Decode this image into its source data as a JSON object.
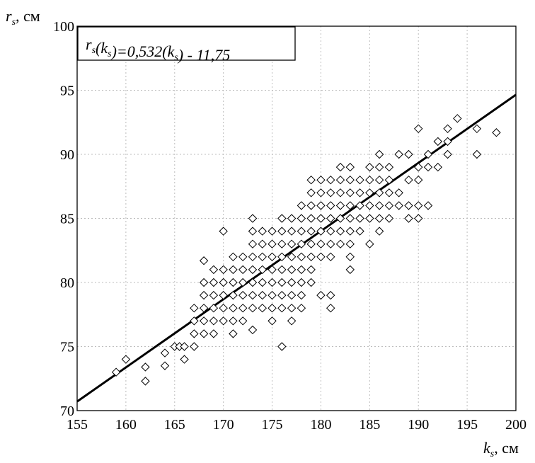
{
  "chart_data": {
    "type": "scatter",
    "title": "",
    "ylabel": {
      "main": "r",
      "sub": "s",
      "unit": ", см"
    },
    "xlabel": {
      "main": "k",
      "sub": "s",
      "unit": ", см"
    },
    "xlim": [
      155,
      200
    ],
    "ylim": [
      70,
      100
    ],
    "xticks": [
      "155",
      "160",
      "165",
      "170",
      "175",
      "180",
      "185",
      "190",
      "195",
      "200"
    ],
    "yticks": [
      "70",
      "75",
      "80",
      "85",
      "90",
      "95",
      "100"
    ],
    "grid": true,
    "annotation": {
      "parts": [
        {
          "t": "r",
          "sub": false
        },
        {
          "t": "s",
          "sub": true
        },
        {
          "t": "(",
          "sub": false
        },
        {
          "t": "k",
          "sub": false
        },
        {
          "t": "s",
          "sub": true
        },
        {
          "t": ")=0,532(",
          "sub": false
        },
        {
          "t": "k",
          "sub": false
        },
        {
          "t": "s",
          "sub": true
        },
        {
          "t": ") - 11,75",
          "sub": false
        }
      ]
    },
    "fit_line": {
      "slope": 0.532,
      "intercept": -11.75
    },
    "points": [
      [
        159,
        73
      ],
      [
        160,
        74
      ],
      [
        162,
        73.4
      ],
      [
        162,
        72.3
      ],
      [
        164,
        73.5
      ],
      [
        164,
        74.5
      ],
      [
        165,
        75
      ],
      [
        165.5,
        75
      ],
      [
        166,
        74
      ],
      [
        166,
        75
      ],
      [
        167,
        75
      ],
      [
        167,
        76
      ],
      [
        167,
        77
      ],
      [
        167,
        78
      ],
      [
        168,
        81.7
      ],
      [
        168,
        80
      ],
      [
        168,
        79
      ],
      [
        168,
        78
      ],
      [
        168,
        77
      ],
      [
        168,
        76
      ],
      [
        169,
        81
      ],
      [
        169,
        80
      ],
      [
        169,
        79
      ],
      [
        169,
        78
      ],
      [
        169,
        77
      ],
      [
        169,
        76
      ],
      [
        170,
        84
      ],
      [
        170,
        81
      ],
      [
        170,
        80
      ],
      [
        170,
        79
      ],
      [
        170,
        78
      ],
      [
        170,
        77
      ],
      [
        171,
        82
      ],
      [
        171,
        81
      ],
      [
        171,
        80
      ],
      [
        171,
        79
      ],
      [
        171,
        78
      ],
      [
        171,
        77
      ],
      [
        171,
        76
      ],
      [
        172,
        82
      ],
      [
        172,
        81
      ],
      [
        172,
        80
      ],
      [
        172,
        79
      ],
      [
        172,
        78
      ],
      [
        172,
        77
      ],
      [
        173,
        85
      ],
      [
        173,
        84
      ],
      [
        173,
        83
      ],
      [
        173,
        82
      ],
      [
        173,
        81
      ],
      [
        173,
        80
      ],
      [
        173,
        79
      ],
      [
        173,
        78
      ],
      [
        173,
        76.3
      ],
      [
        174,
        84
      ],
      [
        174,
        83
      ],
      [
        174,
        82
      ],
      [
        174,
        81
      ],
      [
        174,
        80
      ],
      [
        174,
        79
      ],
      [
        174,
        78
      ],
      [
        175,
        84
      ],
      [
        175,
        83
      ],
      [
        175,
        82
      ],
      [
        175,
        81
      ],
      [
        175,
        80
      ],
      [
        175,
        79
      ],
      [
        175,
        78
      ],
      [
        175,
        77
      ],
      [
        176,
        85
      ],
      [
        176,
        84
      ],
      [
        176,
        83
      ],
      [
        176,
        82
      ],
      [
        176,
        81
      ],
      [
        176,
        80
      ],
      [
        176,
        79
      ],
      [
        176,
        78
      ],
      [
        176,
        75
      ],
      [
        177,
        85
      ],
      [
        177,
        84
      ],
      [
        177,
        83
      ],
      [
        177,
        82
      ],
      [
        177,
        81
      ],
      [
        177,
        80
      ],
      [
        177,
        79
      ],
      [
        177,
        78
      ],
      [
        177,
        77
      ],
      [
        178,
        86
      ],
      [
        178,
        85
      ],
      [
        178,
        84
      ],
      [
        178,
        83
      ],
      [
        178,
        82
      ],
      [
        178,
        81
      ],
      [
        178,
        80
      ],
      [
        178,
        79
      ],
      [
        178,
        78
      ],
      [
        179,
        88
      ],
      [
        179,
        87
      ],
      [
        179,
        86
      ],
      [
        179,
        85
      ],
      [
        179,
        84
      ],
      [
        179,
        83
      ],
      [
        179,
        82
      ],
      [
        179,
        81
      ],
      [
        179,
        80
      ],
      [
        180,
        88
      ],
      [
        180,
        87
      ],
      [
        180,
        86
      ],
      [
        180,
        85
      ],
      [
        180,
        84
      ],
      [
        180,
        83
      ],
      [
        180,
        82
      ],
      [
        180,
        79
      ],
      [
        181,
        88
      ],
      [
        181,
        87
      ],
      [
        181,
        86
      ],
      [
        181,
        85
      ],
      [
        181,
        84
      ],
      [
        181,
        83
      ],
      [
        181,
        82
      ],
      [
        181,
        79
      ],
      [
        181,
        78
      ],
      [
        182,
        89
      ],
      [
        182,
        88
      ],
      [
        182,
        87
      ],
      [
        182,
        86
      ],
      [
        182,
        85
      ],
      [
        182,
        84
      ],
      [
        182,
        83
      ],
      [
        183,
        89
      ],
      [
        183,
        88
      ],
      [
        183,
        87
      ],
      [
        183,
        86
      ],
      [
        183,
        85
      ],
      [
        183,
        84
      ],
      [
        183,
        83
      ],
      [
        183,
        82
      ],
      [
        183,
        81
      ],
      [
        184,
        88
      ],
      [
        184,
        87
      ],
      [
        184,
        86
      ],
      [
        184,
        85
      ],
      [
        184,
        84
      ],
      [
        185,
        89
      ],
      [
        185,
        88
      ],
      [
        185,
        87
      ],
      [
        185,
        86
      ],
      [
        185,
        85
      ],
      [
        185,
        83
      ],
      [
        186,
        90
      ],
      [
        186,
        89
      ],
      [
        186,
        88
      ],
      [
        186,
        87
      ],
      [
        186,
        86
      ],
      [
        186,
        85
      ],
      [
        186,
        84
      ],
      [
        187,
        89
      ],
      [
        187,
        88
      ],
      [
        187,
        87
      ],
      [
        187,
        86
      ],
      [
        187,
        85
      ],
      [
        188,
        90
      ],
      [
        188,
        87
      ],
      [
        188,
        86
      ],
      [
        189,
        90
      ],
      [
        189,
        88
      ],
      [
        189,
        86
      ],
      [
        189,
        85
      ],
      [
        190,
        92
      ],
      [
        190,
        89
      ],
      [
        190,
        88
      ],
      [
        190,
        86
      ],
      [
        190,
        85
      ],
      [
        191,
        90
      ],
      [
        191,
        89
      ],
      [
        191,
        86
      ],
      [
        192,
        91
      ],
      [
        192,
        89
      ],
      [
        193,
        92
      ],
      [
        193,
        90
      ],
      [
        193,
        91
      ],
      [
        194,
        92.8
      ],
      [
        196,
        92
      ],
      [
        196,
        90
      ],
      [
        198,
        91.7
      ]
    ]
  }
}
